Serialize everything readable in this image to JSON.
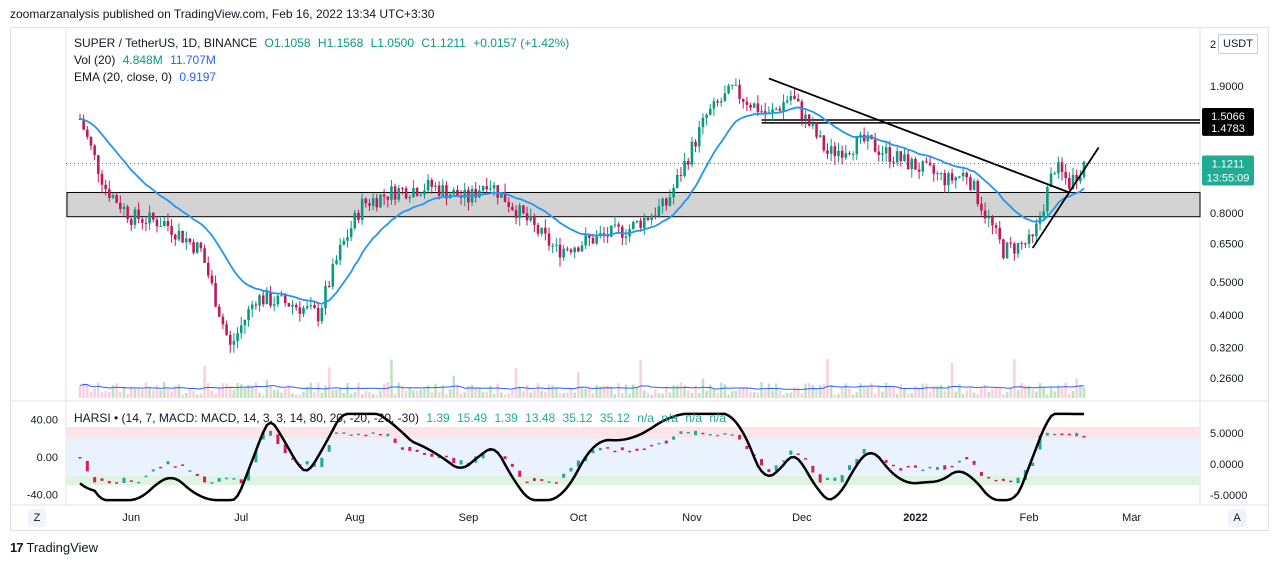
{
  "header": {
    "publish_line": "zoomarzanalysis published on TradingView.com, Feb 16, 2022 13:34 UTC+3:30"
  },
  "legend": {
    "symbol": "SUPER / TetherUS, 1D, BINANCE",
    "open": "O1.1058",
    "high": "H1.1568",
    "low": "L1.0500",
    "close": "C1.1211",
    "change": "+0.0157 (+1.42%)",
    "vol_label": "Vol (20)",
    "vol_value": "4.848M",
    "vol_ma": "11.707M",
    "ema_label": "EMA (20, close, 0)",
    "ema_value": "0.9197",
    "harsi_label": "HARSI • (14, 7, MACD: MACD, 14, 3, 3, 14, 80, 20, -20, -20, -30)",
    "harsi_values": [
      "1.39",
      "15.49",
      "1.39",
      "13.48",
      "35.12",
      "35.12",
      "n/a",
      "n/a",
      "n/a",
      "n/a"
    ]
  },
  "price_axis": {
    "currency": "USDT",
    "top_tick": "2",
    "ticks": [
      "1.9000",
      "0.8000",
      "0.6500",
      "0.5000",
      "0.4000",
      "0.3200",
      "0.2600"
    ],
    "badges": [
      {
        "label": "1.5066",
        "color": "#000000"
      },
      {
        "label": "1.4783",
        "color": "#000000"
      },
      {
        "label": "1.1211",
        "countdown": "13:55:09",
        "color": "#22ab94"
      }
    ]
  },
  "osc_axis_left": [
    "40.00",
    "0.00",
    "-40.00"
  ],
  "osc_axis_right": [
    "5.0000",
    "0.0000",
    "-5.0000"
  ],
  "time_axis": [
    "Jun",
    "Jul",
    "Aug",
    "Sep",
    "Oct",
    "Nov",
    "Dec",
    "2022",
    "Feb",
    "Mar"
  ],
  "buttons": {
    "zoom": "Z",
    "auto": "A"
  },
  "footer": {
    "logo": "17",
    "brand": "TradingView"
  },
  "colors": {
    "up": "#089981",
    "down": "#c2185b",
    "ema": "#2196f3",
    "zone": "#c8c8c8",
    "harsi_up": "#26a69a",
    "harsi_down": "#d81b60"
  },
  "chart_data": {
    "type": "candlestick",
    "symbol": "SUPER / TetherUS",
    "interval": "1D",
    "x_range": [
      "2021-05-18",
      "2022-02-16"
    ],
    "y_scale": "log",
    "horizontal_levels": [
      1.5066,
      1.4783
    ],
    "support_zone": [
      0.78,
      0.92
    ],
    "price_path": [
      {
        "date": "2021-05-18",
        "close": 1.52
      },
      {
        "date": "2021-05-25",
        "close": 0.95
      },
      {
        "date": "2021-06-01",
        "close": 0.78
      },
      {
        "date": "2021-06-10",
        "close": 0.75
      },
      {
        "date": "2021-06-20",
        "close": 0.62
      },
      {
        "date": "2021-06-28",
        "close": 0.32
      },
      {
        "date": "2021-07-05",
        "close": 0.45
      },
      {
        "date": "2021-07-15",
        "close": 0.43
      },
      {
        "date": "2021-07-22",
        "close": 0.4
      },
      {
        "date": "2021-07-28",
        "close": 0.62
      },
      {
        "date": "2021-08-03",
        "close": 0.85
      },
      {
        "date": "2021-08-12",
        "close": 0.93
      },
      {
        "date": "2021-08-22",
        "close": 0.96
      },
      {
        "date": "2021-09-01",
        "close": 0.88
      },
      {
        "date": "2021-09-06",
        "close": 1.0
      },
      {
        "date": "2021-09-15",
        "close": 0.8
      },
      {
        "date": "2021-09-25",
        "close": 0.62
      },
      {
        "date": "2021-10-05",
        "close": 0.67
      },
      {
        "date": "2021-10-15",
        "close": 0.72
      },
      {
        "date": "2021-10-25",
        "close": 0.85
      },
      {
        "date": "2021-11-05",
        "close": 1.55
      },
      {
        "date": "2021-11-12",
        "close": 1.85
      },
      {
        "date": "2021-11-22",
        "close": 1.55
      },
      {
        "date": "2021-11-28",
        "close": 1.78
      },
      {
        "date": "2021-12-08",
        "close": 1.2
      },
      {
        "date": "2021-12-18",
        "close": 1.3
      },
      {
        "date": "2021-12-28",
        "close": 1.15
      },
      {
        "date": "2022-01-10",
        "close": 1.0
      },
      {
        "date": "2022-01-15",
        "close": 1.05
      },
      {
        "date": "2022-01-20",
        "close": 0.8
      },
      {
        "date": "2022-01-25",
        "close": 0.62
      },
      {
        "date": "2022-02-02",
        "close": 0.66
      },
      {
        "date": "2022-02-08",
        "close": 1.1
      },
      {
        "date": "2022-02-12",
        "close": 0.98
      },
      {
        "date": "2022-02-16",
        "close": 1.1211
      }
    ],
    "trendlines": [
      {
        "from": {
          "date": "2021-11-22",
          "price": 2.0
        },
        "to": {
          "date": "2022-02-12",
          "price": 0.92
        }
      },
      {
        "from": {
          "date": "2022-02-02",
          "price": 0.63
        },
        "to": {
          "date": "2022-02-20",
          "price": 1.25
        }
      }
    ]
  }
}
